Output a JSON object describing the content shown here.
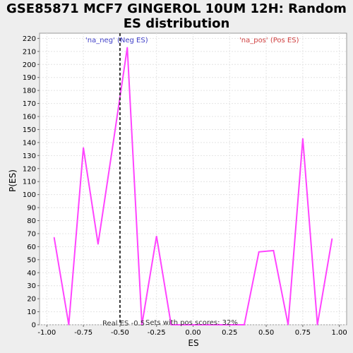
{
  "chart_data": {
    "type": "line",
    "title": "GSE85871 MCF7 GINGEROL 10UM 12H: Random\nES distribution",
    "xlabel": "ES",
    "ylabel": "P(ES)",
    "xlim": [
      -1.05,
      1.05
    ],
    "ylim": [
      0,
      224
    ],
    "x_ticks": [
      -1.0,
      -0.75,
      -0.5,
      -0.25,
      0.0,
      0.25,
      0.5,
      0.75,
      1.0
    ],
    "x_tick_labels": [
      "-1.00",
      "-0.75",
      "-0.50",
      "-0.25",
      "0.00",
      "0.25",
      "0.50",
      "0.75",
      "1.00"
    ],
    "y_ticks": [
      0,
      10,
      20,
      30,
      40,
      50,
      60,
      70,
      80,
      90,
      100,
      110,
      120,
      130,
      140,
      150,
      160,
      170,
      180,
      190,
      200,
      210,
      220
    ],
    "grid": true,
    "series": [
      {
        "name": "Random ES distribution",
        "color": "#ff44ff",
        "x": [
          -0.95,
          -0.85,
          -0.75,
          -0.65,
          -0.55,
          -0.45,
          -0.35,
          -0.25,
          -0.15,
          -0.05,
          0.05,
          0.15,
          0.25,
          0.35,
          0.45,
          0.55,
          0.65,
          0.75,
          0.85,
          0.95
        ],
        "y": [
          67,
          0,
          136,
          62,
          137,
          213,
          0,
          68,
          0,
          0,
          0,
          0,
          0,
          0,
          56,
          57,
          0,
          143,
          0,
          66
        ]
      }
    ],
    "real_es": {
      "value": -0.5,
      "label": "Real ES -0.5"
    },
    "legend": {
      "neg": "'na_neg' (Neg ES)",
      "pos": "'na_pos' (Pos ES)",
      "neg_color": "#4040c8",
      "pos_color": "#d04040"
    },
    "annotation": "Sets with pos scores: 32%"
  }
}
